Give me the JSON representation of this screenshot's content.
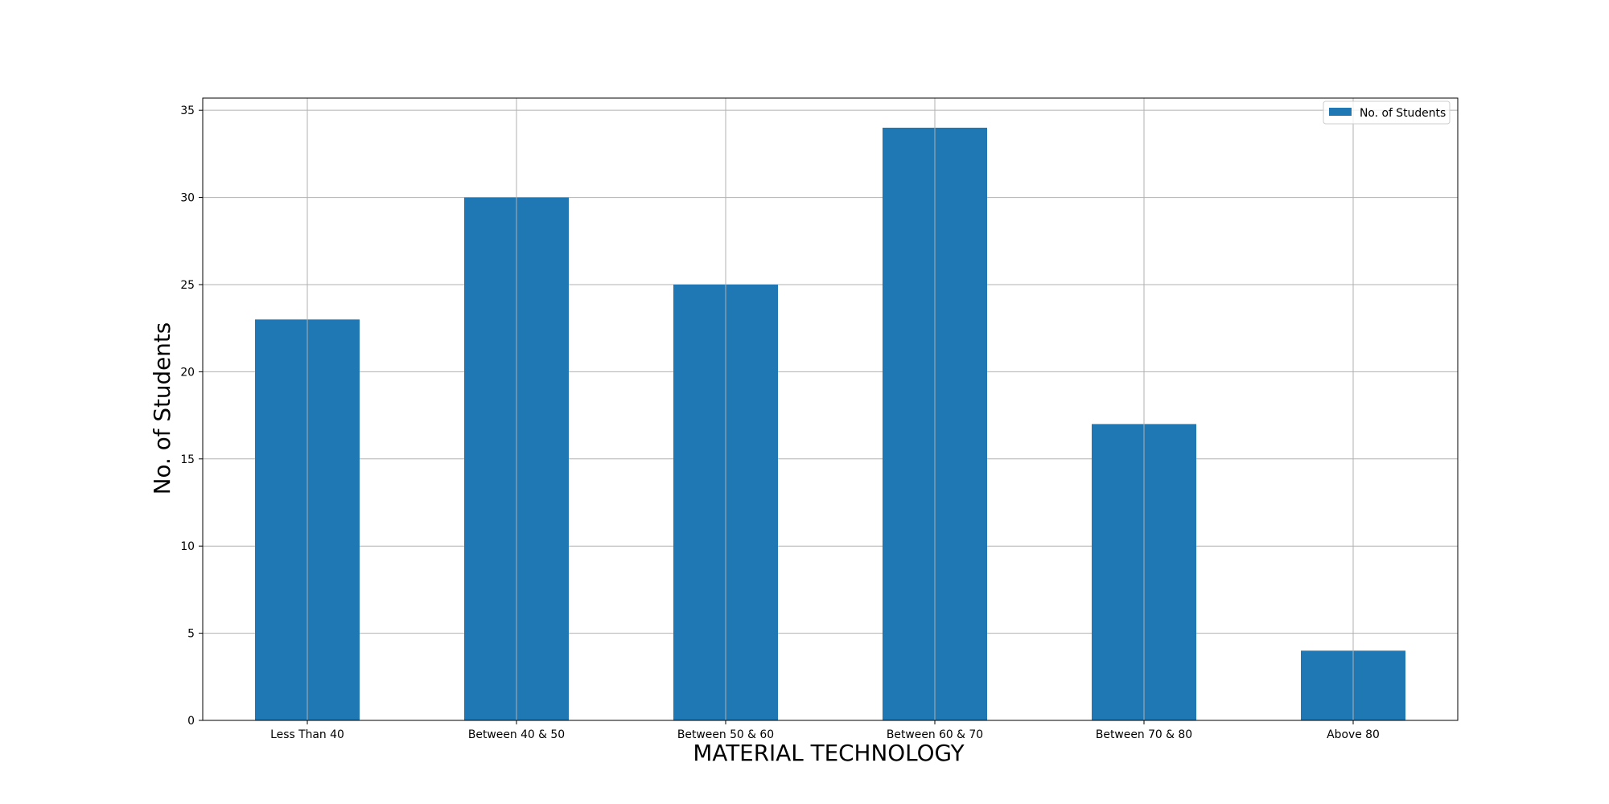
{
  "chart_data": {
    "type": "bar",
    "title": "",
    "xlabel": "MATERIAL TECHNOLOGY",
    "ylabel": "No. of Students",
    "categories": [
      "Less Than 40",
      "Between 40 & 50",
      "Between 50 & 60",
      "Between 60 & 70",
      "Between 70 & 80",
      "Above 80"
    ],
    "series": [
      {
        "name": "No. of Students",
        "values": [
          23,
          30,
          25,
          34,
          17,
          4
        ],
        "color": "#1f77b4"
      }
    ],
    "ylim": [
      0,
      35.7
    ],
    "yticks": [
      0,
      5,
      10,
      15,
      20,
      25,
      30,
      35
    ],
    "grid": true,
    "legend_position": "top-right"
  }
}
